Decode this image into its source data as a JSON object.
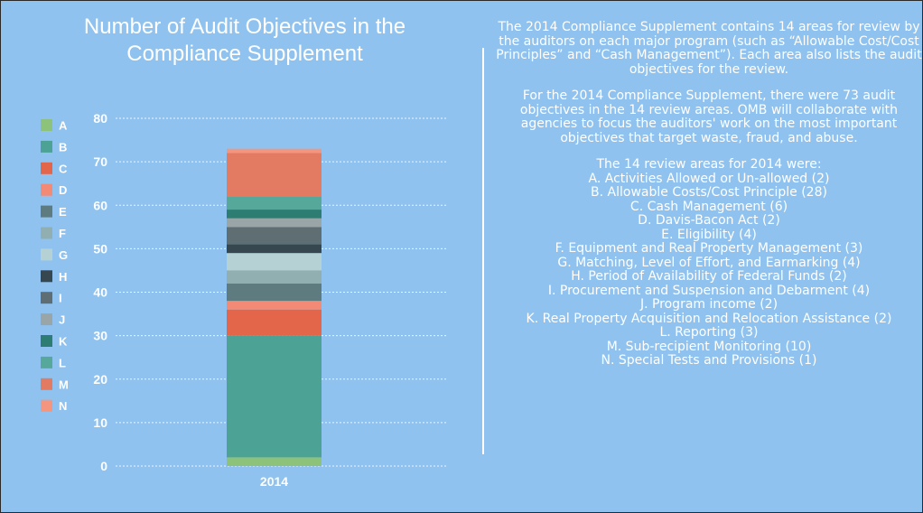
{
  "chart_data": {
    "type": "bar",
    "stacked": true,
    "title": "Number of Audit Objectives in the Compliance Supplement",
    "categories": [
      "2014"
    ],
    "ylim": [
      0,
      80
    ],
    "yticks": [
      0,
      10,
      20,
      30,
      40,
      50,
      60,
      70,
      80
    ],
    "grid": true,
    "legend_position": "left",
    "series": [
      {
        "name": "A",
        "values": [
          2
        ],
        "color": "#8cc27a"
      },
      {
        "name": "B",
        "values": [
          28
        ],
        "color": "#4ba295"
      },
      {
        "name": "C",
        "values": [
          6
        ],
        "color": "#e3664a"
      },
      {
        "name": "D",
        "values": [
          2
        ],
        "color": "#f28a75"
      },
      {
        "name": "E",
        "values": [
          4
        ],
        "color": "#5e7b7f"
      },
      {
        "name": "F",
        "values": [
          3
        ],
        "color": "#91aeb0"
      },
      {
        "name": "G",
        "values": [
          4
        ],
        "color": "#b5d1d3"
      },
      {
        "name": "H",
        "values": [
          2
        ],
        "color": "#37474f"
      },
      {
        "name": "I",
        "values": [
          4
        ],
        "color": "#5f6e73"
      },
      {
        "name": "J",
        "values": [
          2
        ],
        "color": "#9aa5a8"
      },
      {
        "name": "K",
        "values": [
          2
        ],
        "color": "#2d7d72"
      },
      {
        "name": "L",
        "values": [
          3
        ],
        "color": "#56a89b"
      },
      {
        "name": "M",
        "values": [
          10
        ],
        "color": "#e37a62"
      },
      {
        "name": "N",
        "values": [
          1
        ],
        "color": "#f3957f"
      }
    ]
  },
  "colors": {
    "background": "#8fc2ee",
    "text": "#ffffff",
    "grid": "#ffffff"
  },
  "description": {
    "para1": "The 2014 Compliance Supplement contains 14 areas for review by the auditors on each major program (such as “Allowable Cost/Cost Principles” and “Cash Management”). Each area also lists the audit objectives for the review.",
    "para2": "For the 2014 Compliance Supplement, there were 73 audit objectives in the 14 review areas. OMB will collaborate with agencies to focus the auditors' work on the most important objectives that target waste, fraud, and abuse.",
    "areas_heading": "The 14 review areas for 2014 were:",
    "areas": [
      "A. Activities Allowed or Un-allowed (2)",
      "B. Allowable Costs/Cost Principle (28)",
      "C. Cash Management (6)",
      "D. Davis-Bacon Act (2)",
      "E. Eligibility (4)",
      "F. Equipment and Real Property Management (3)",
      "G. Matching, Level of Effort, and Earmarking (4)",
      "H. Period of Availability of Federal Funds (2)",
      "I. Procurement and Suspension and Debarment (4)",
      "J. Program income (2)",
      "K. Real Property Acquisition and Relocation Assistance (2)",
      "L. Reporting (3)",
      "M. Sub-recipient Monitoring (10)",
      "N. Special Tests and Provisions (1)"
    ]
  }
}
